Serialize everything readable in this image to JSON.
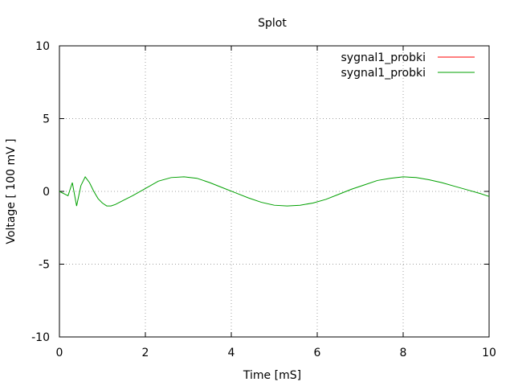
{
  "chart_data": {
    "type": "line",
    "title": "Splot",
    "xlabel": "Time [mS]",
    "ylabel": "Voltage [ 100 mV ]",
    "xlim": [
      0,
      10
    ],
    "ylim": [
      -10,
      10
    ],
    "xticks": [
      0,
      2,
      4,
      6,
      8,
      10
    ],
    "yticks": [
      -10,
      -5,
      0,
      5,
      10
    ],
    "xtick_labels": [
      "0",
      "2",
      "4",
      "6",
      "8",
      "10"
    ],
    "ytick_labels": [
      "-10",
      "-5",
      "0",
      "5",
      "10"
    ],
    "grid": true,
    "legend_position": "top-right",
    "series": [
      {
        "name": "sygnal1_probki",
        "color": "#ff0000",
        "x": [],
        "y": []
      },
      {
        "name": "sygnal1_probki",
        "color": "#00a000",
        "x": [
          0,
          0.2,
          0.3,
          0.4,
          0.5,
          0.6,
          0.7,
          0.8,
          0.9,
          1.0,
          1.1,
          1.2,
          1.3,
          1.5,
          1.7,
          2.0,
          2.3,
          2.6,
          2.9,
          3.2,
          3.5,
          3.8,
          4.1,
          4.4,
          4.7,
          5.0,
          5.3,
          5.6,
          5.9,
          6.2,
          6.5,
          6.8,
          7.1,
          7.4,
          7.7,
          8.0,
          8.3,
          8.6,
          8.9,
          9.2,
          9.5,
          9.8,
          10.0
        ],
        "y": [
          0,
          -0.3,
          0.6,
          -1.0,
          0.4,
          1.0,
          0.6,
          0.0,
          -0.5,
          -0.8,
          -1.0,
          -1.0,
          -0.9,
          -0.6,
          -0.3,
          0.2,
          0.7,
          0.95,
          1.0,
          0.9,
          0.6,
          0.25,
          -0.1,
          -0.45,
          -0.75,
          -0.95,
          -1.0,
          -0.95,
          -0.8,
          -0.55,
          -0.2,
          0.15,
          0.45,
          0.75,
          0.9,
          1.0,
          0.95,
          0.8,
          0.6,
          0.35,
          0.1,
          -0.15,
          -0.35
        ]
      }
    ]
  }
}
